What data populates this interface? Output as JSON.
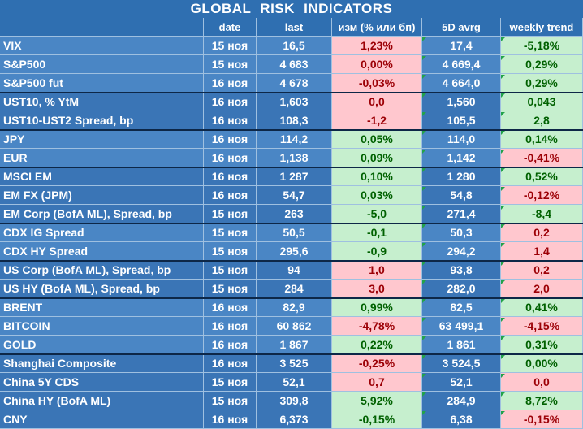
{
  "title": "GLOBAL   RISK   INDICATORS",
  "headers": [
    "",
    "date",
    "last",
    "изм (% или бп)",
    "5D avrg",
    "weekly trend"
  ],
  "rows": [
    {
      "name": "VIX",
      "date": "15 ноя",
      "last": "16,5",
      "change": "1,23%",
      "change_sign": "neg",
      "avg5d": "17,4",
      "trend": "-5,18%",
      "trend_sign": "pos",
      "shade": "#4a86c5"
    },
    {
      "name": "S&P500",
      "date": "15 ноя",
      "last": "4 683",
      "change": "0,00%",
      "change_sign": "neg",
      "avg5d": "4 669,4",
      "trend": "0,29%",
      "trend_sign": "pos",
      "shade": "#4a86c5"
    },
    {
      "name": "S&P500 fut",
      "date": "16 ноя",
      "last": "4 678",
      "change": "-0,03%",
      "change_sign": "neg",
      "avg5d": "4 664,0",
      "trend": "0,29%",
      "trend_sign": "pos",
      "shade": "#4a86c5"
    },
    {
      "name": "UST10, % YtM",
      "date": "16 ноя",
      "last": "1,603",
      "change": "0,0",
      "change_sign": "neg",
      "avg5d": "1,560",
      "trend": "0,043",
      "trend_sign": "pos",
      "shade": "#3a75b6"
    },
    {
      "name": "UST10-UST2 Spread, bp",
      "date": "16 ноя",
      "last": "108,3",
      "change": "-1,2",
      "change_sign": "neg",
      "avg5d": "105,5",
      "trend": "2,8",
      "trend_sign": "pos",
      "shade": "#3a75b6"
    },
    {
      "name": "JPY",
      "date": "16 ноя",
      "last": "114,2",
      "change": "0,05%",
      "change_sign": "pos",
      "avg5d": "114,0",
      "trend": "0,14%",
      "trend_sign": "pos",
      "shade": "#4a86c5"
    },
    {
      "name": "EUR",
      "date": "16 ноя",
      "last": "1,138",
      "change": "0,09%",
      "change_sign": "pos",
      "avg5d": "1,142",
      "trend": "-0,41%",
      "trend_sign": "neg",
      "shade": "#4a86c5"
    },
    {
      "name": "MSCI EM",
      "date": "16 ноя",
      "last": "1 287",
      "change": "0,10%",
      "change_sign": "pos",
      "avg5d": "1 280",
      "trend": "0,52%",
      "trend_sign": "pos",
      "shade": "#3a75b6"
    },
    {
      "name": "EM FX (JPM)",
      "date": "16 ноя",
      "last": "54,7",
      "change": "0,03%",
      "change_sign": "pos",
      "avg5d": "54,8",
      "trend": "-0,12%",
      "trend_sign": "neg",
      "shade": "#3a75b6"
    },
    {
      "name": "EM Corp (BofA ML), Spread, bp",
      "date": "15 ноя",
      "last": "263",
      "change": "-5,0",
      "change_sign": "pos",
      "avg5d": "271,4",
      "trend": "-8,4",
      "trend_sign": "pos",
      "shade": "#3a75b6"
    },
    {
      "name": "CDX IG Spread",
      "date": "15 ноя",
      "last": "50,5",
      "change": "-0,1",
      "change_sign": "pos",
      "avg5d": "50,3",
      "trend": "0,2",
      "trend_sign": "neg",
      "shade": "#4a86c5"
    },
    {
      "name": "CDX HY Spread",
      "date": "15 ноя",
      "last": "295,6",
      "change": "-0,9",
      "change_sign": "pos",
      "avg5d": "294,2",
      "trend": "1,4",
      "trend_sign": "neg",
      "shade": "#4a86c5"
    },
    {
      "name": "US Corp (BofA ML), Spread, bp",
      "date": "15 ноя",
      "last": "94",
      "change": "1,0",
      "change_sign": "neg",
      "avg5d": "93,8",
      "trend": "0,2",
      "trend_sign": "neg",
      "shade": "#3a75b6"
    },
    {
      "name": "US HY (BofA ML), Spread, bp",
      "date": "15 ноя",
      "last": "284",
      "change": "3,0",
      "change_sign": "neg",
      "avg5d": "282,0",
      "trend": "2,0",
      "trend_sign": "neg",
      "shade": "#3a75b6"
    },
    {
      "name": "BRENT",
      "date": "16 ноя",
      "last": "82,9",
      "change": "0,99%",
      "change_sign": "pos",
      "avg5d": "82,5",
      "trend": "0,41%",
      "trend_sign": "pos",
      "shade": "#4a86c5"
    },
    {
      "name": "BITCOIN",
      "date": "16 ноя",
      "last": "60 862",
      "change": "-4,78%",
      "change_sign": "neg",
      "avg5d": "63 499,1",
      "trend": "-4,15%",
      "trend_sign": "neg",
      "shade": "#4a86c5"
    },
    {
      "name": "GOLD",
      "date": "16 ноя",
      "last": "1 867",
      "change": "0,22%",
      "change_sign": "pos",
      "avg5d": "1 861",
      "trend": "0,31%",
      "trend_sign": "pos",
      "shade": "#4a86c5"
    },
    {
      "name": "Shanghai Composite",
      "date": "16 ноя",
      "last": "3 525",
      "change": "-0,25%",
      "change_sign": "neg",
      "avg5d": "3 524,5",
      "trend": "0,00%",
      "trend_sign": "pos",
      "shade": "#3a75b6"
    },
    {
      "name": "China 5Y CDS",
      "date": "15 ноя",
      "last": "52,1",
      "change": "0,7",
      "change_sign": "neg",
      "avg5d": "52,1",
      "trend": "0,0",
      "trend_sign": "neg",
      "shade": "#3a75b6"
    },
    {
      "name": "China HY (BofA ML)",
      "date": "15 ноя",
      "last": "309,8",
      "change": "5,92%",
      "change_sign": "pos",
      "avg5d": "284,9",
      "trend": "8,72%",
      "trend_sign": "pos",
      "shade": "#3a75b6"
    },
    {
      "name": "CNY",
      "date": "16 ноя",
      "last": "6,373",
      "change": "-0,15%",
      "change_sign": "pos",
      "avg5d": "6,38",
      "trend": "-0,15%",
      "trend_sign": "neg",
      "shade": "#3a75b6"
    }
  ],
  "colors": {
    "header_bg": "#2f6fb1",
    "positive_bg": "#c6efce",
    "positive_text": "#006100",
    "negative_bg": "#ffc7ce",
    "negative_text": "#9c0006"
  }
}
